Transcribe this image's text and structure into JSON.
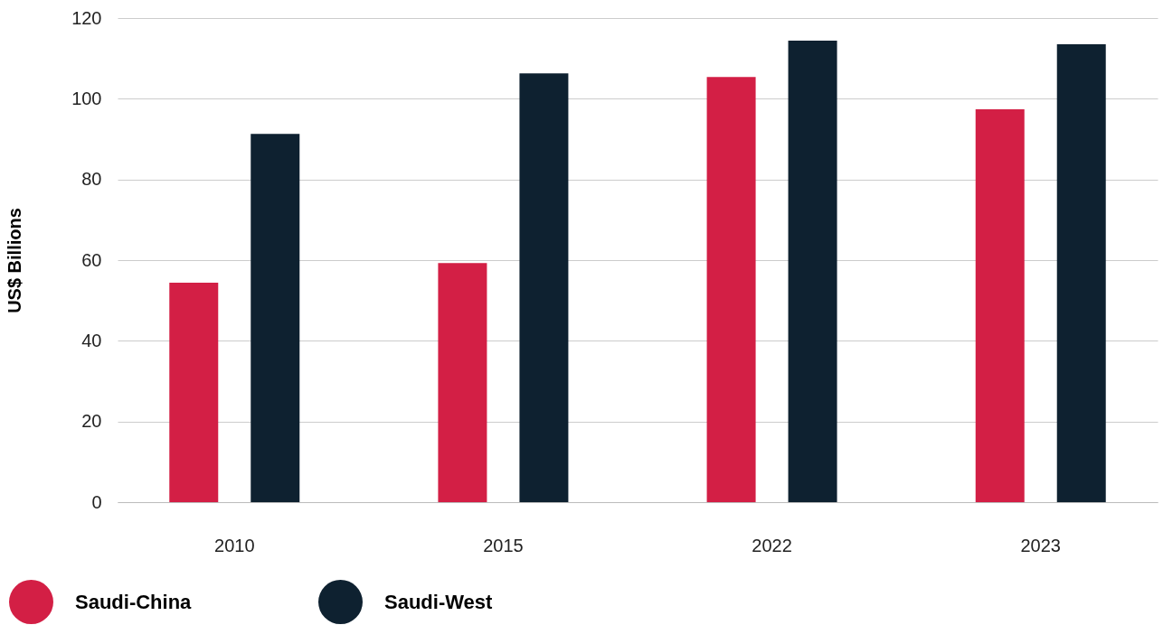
{
  "chart_data": {
    "type": "bar",
    "ylabel": "US$ Billions",
    "categories": [
      "2010",
      "2015",
      "2022",
      "2023"
    ],
    "series": [
      {
        "name": "Saudi-China",
        "color": "#d31f45",
        "values": [
          54.4,
          59.3,
          105.4,
          97.4
        ]
      },
      {
        "name": "Saudi-West",
        "color": "#0e2130",
        "values": [
          91.3,
          106.3,
          114.4,
          113.5
        ]
      }
    ],
    "ylim": [
      0,
      120
    ],
    "yticks": [
      0,
      20,
      40,
      60,
      80,
      100,
      120
    ],
    "grid": "y",
    "legend": "bottom left"
  }
}
